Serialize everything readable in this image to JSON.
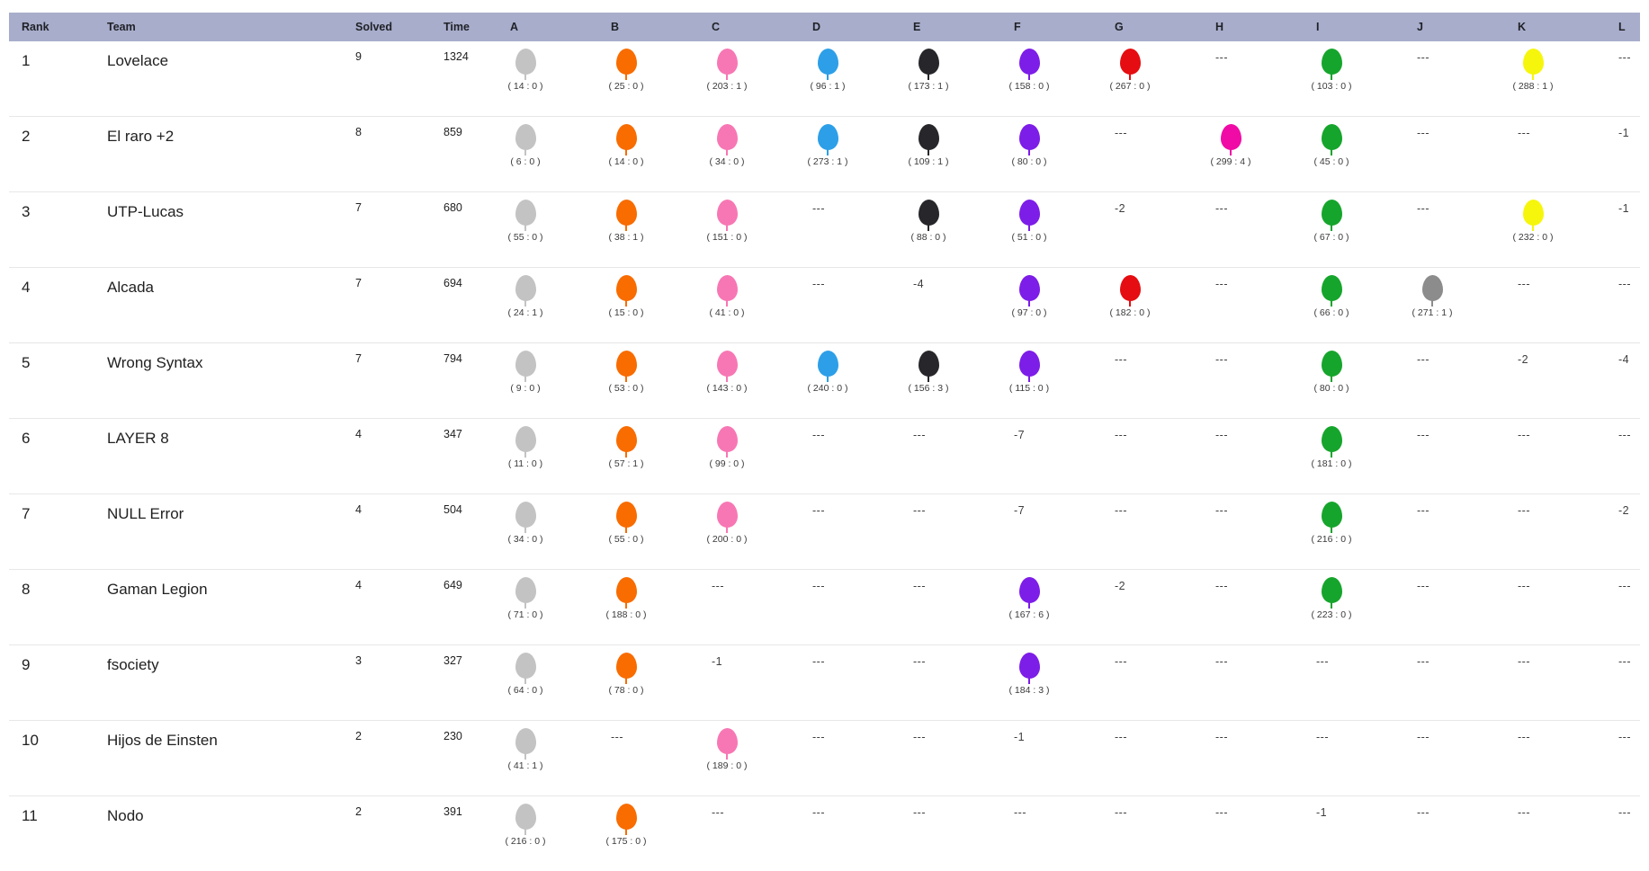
{
  "table": {
    "columns": [
      "Rank",
      "Team",
      "Solved",
      "Time",
      "A",
      "B",
      "C",
      "D",
      "E",
      "F",
      "G",
      "H",
      "I",
      "J",
      "K",
      "L"
    ],
    "problems": [
      "A",
      "B",
      "C",
      "D",
      "E",
      "F",
      "G",
      "H",
      "I",
      "J",
      "K",
      "L"
    ],
    "empty_marker": "---",
    "rows": [
      {
        "rank": "1",
        "team": "Lovelace",
        "solved": "9",
        "time": "1324",
        "cells": [
          {
            "balloon": true,
            "label": "( 14 : 0 )"
          },
          {
            "balloon": true,
            "label": "( 25 : 0 )"
          },
          {
            "balloon": true,
            "label": "( 203 : 1 )"
          },
          {
            "balloon": true,
            "label": "( 96 : 1 )"
          },
          {
            "balloon": true,
            "label": "( 173 : 1 )"
          },
          {
            "balloon": true,
            "label": "( 158 : 0 )"
          },
          {
            "balloon": true,
            "label": "( 267 : 0 )"
          },
          {
            "text": "---"
          },
          {
            "balloon": true,
            "label": "( 103 : 0 )"
          },
          {
            "text": "---"
          },
          {
            "balloon": true,
            "label": "( 288 : 1 )"
          },
          {
            "text": "---"
          }
        ]
      },
      {
        "rank": "2",
        "team": "El raro +2",
        "solved": "8",
        "time": "859",
        "cells": [
          {
            "balloon": true,
            "label": "( 6 : 0 )"
          },
          {
            "balloon": true,
            "label": "( 14 : 0 )"
          },
          {
            "balloon": true,
            "label": "( 34 : 0 )"
          },
          {
            "balloon": true,
            "label": "( 273 : 1 )"
          },
          {
            "balloon": true,
            "label": "( 109 : 1 )"
          },
          {
            "balloon": true,
            "label": "( 80 : 0 )"
          },
          {
            "text": "---"
          },
          {
            "balloon": true,
            "label": "( 299 : 4 )"
          },
          {
            "balloon": true,
            "label": "( 45 : 0 )"
          },
          {
            "text": "---"
          },
          {
            "text": "---"
          },
          {
            "text": "-1"
          }
        ]
      },
      {
        "rank": "3",
        "team": "UTP-Lucas",
        "solved": "7",
        "time": "680",
        "cells": [
          {
            "balloon": true,
            "label": "( 55 : 0 )"
          },
          {
            "balloon": true,
            "label": "( 38 : 1 )"
          },
          {
            "balloon": true,
            "label": "( 151 : 0 )"
          },
          {
            "text": "---"
          },
          {
            "balloon": true,
            "label": "( 88 : 0 )"
          },
          {
            "balloon": true,
            "label": "( 51 : 0 )"
          },
          {
            "text": "-2"
          },
          {
            "text": "---"
          },
          {
            "balloon": true,
            "label": "( 67 : 0 )"
          },
          {
            "text": "---"
          },
          {
            "balloon": true,
            "label": "( 232 : 0 )"
          },
          {
            "text": "-1"
          }
        ]
      },
      {
        "rank": "4",
        "team": "Alcada",
        "solved": "7",
        "time": "694",
        "cells": [
          {
            "balloon": true,
            "label": "( 24 : 1 )"
          },
          {
            "balloon": true,
            "label": "( 15 : 0 )"
          },
          {
            "balloon": true,
            "label": "( 41 : 0 )"
          },
          {
            "text": "---"
          },
          {
            "text": "-4"
          },
          {
            "balloon": true,
            "label": "( 97 : 0 )"
          },
          {
            "balloon": true,
            "label": "( 182 : 0 )"
          },
          {
            "text": "---"
          },
          {
            "balloon": true,
            "label": "( 66 : 0 )"
          },
          {
            "balloon": true,
            "label": "( 271 : 1 )"
          },
          {
            "text": "---"
          },
          {
            "text": "---"
          }
        ]
      },
      {
        "rank": "5",
        "team": "Wrong Syntax",
        "solved": "7",
        "time": "794",
        "cells": [
          {
            "balloon": true,
            "label": "( 9 : 0 )"
          },
          {
            "balloon": true,
            "label": "( 53 : 0 )"
          },
          {
            "balloon": true,
            "label": "( 143 : 0 )"
          },
          {
            "balloon": true,
            "label": "( 240 : 0 )"
          },
          {
            "balloon": true,
            "label": "( 156 : 3 )"
          },
          {
            "balloon": true,
            "label": "( 115 : 0 )"
          },
          {
            "text": "---"
          },
          {
            "text": "---"
          },
          {
            "balloon": true,
            "label": "( 80 : 0 )"
          },
          {
            "text": "---"
          },
          {
            "text": "-2"
          },
          {
            "text": "-4"
          }
        ]
      },
      {
        "rank": "6",
        "team": "LAYER 8",
        "solved": "4",
        "time": "347",
        "cells": [
          {
            "balloon": true,
            "label": "( 11 : 0 )"
          },
          {
            "balloon": true,
            "label": "( 57 : 1 )"
          },
          {
            "balloon": true,
            "label": "( 99 : 0 )"
          },
          {
            "text": "---"
          },
          {
            "text": "---"
          },
          {
            "text": "-7"
          },
          {
            "text": "---"
          },
          {
            "text": "---"
          },
          {
            "balloon": true,
            "label": "( 181 : 0 )"
          },
          {
            "text": "---"
          },
          {
            "text": "---"
          },
          {
            "text": "---"
          }
        ]
      },
      {
        "rank": "7",
        "team": "NULL Error",
        "solved": "4",
        "time": "504",
        "cells": [
          {
            "balloon": true,
            "label": "( 34 : 0 )"
          },
          {
            "balloon": true,
            "label": "( 55 : 0 )"
          },
          {
            "balloon": true,
            "label": "( 200 : 0 )"
          },
          {
            "text": "---"
          },
          {
            "text": "---"
          },
          {
            "text": "-7"
          },
          {
            "text": "---"
          },
          {
            "text": "---"
          },
          {
            "balloon": true,
            "label": "( 216 : 0 )"
          },
          {
            "text": "---"
          },
          {
            "text": "---"
          },
          {
            "text": "-2"
          }
        ]
      },
      {
        "rank": "8",
        "team": "Gaman Legion",
        "solved": "4",
        "time": "649",
        "cells": [
          {
            "balloon": true,
            "label": "( 71 : 0 )"
          },
          {
            "balloon": true,
            "label": "( 188 : 0 )"
          },
          {
            "text": "---"
          },
          {
            "text": "---"
          },
          {
            "text": "---"
          },
          {
            "balloon": true,
            "label": "( 167 : 6 )"
          },
          {
            "text": "-2"
          },
          {
            "text": "---"
          },
          {
            "balloon": true,
            "label": "( 223 : 0 )"
          },
          {
            "text": "---"
          },
          {
            "text": "---"
          },
          {
            "text": "---"
          }
        ]
      },
      {
        "rank": "9",
        "team": "fsociety",
        "solved": "3",
        "time": "327",
        "cells": [
          {
            "balloon": true,
            "label": "( 64 : 0 )"
          },
          {
            "balloon": true,
            "label": "( 78 : 0 )"
          },
          {
            "text": "-1"
          },
          {
            "text": "---"
          },
          {
            "text": "---"
          },
          {
            "balloon": true,
            "label": "( 184 : 3 )"
          },
          {
            "text": "---"
          },
          {
            "text": "---"
          },
          {
            "text": "---"
          },
          {
            "text": "---"
          },
          {
            "text": "---"
          },
          {
            "text": "---"
          }
        ]
      },
      {
        "rank": "10",
        "team": "Hijos de Einsten",
        "solved": "2",
        "time": "230",
        "cells": [
          {
            "balloon": true,
            "label": "( 41 : 1 )"
          },
          {
            "text": "---"
          },
          {
            "balloon": true,
            "label": "( 189 : 0 )"
          },
          {
            "text": "---"
          },
          {
            "text": "---"
          },
          {
            "text": "-1"
          },
          {
            "text": "---"
          },
          {
            "text": "---"
          },
          {
            "text": "---"
          },
          {
            "text": "---"
          },
          {
            "text": "---"
          },
          {
            "text": "---"
          }
        ]
      },
      {
        "rank": "11",
        "team": "Nodo",
        "solved": "2",
        "time": "391",
        "cells": [
          {
            "balloon": true,
            "label": "( 216 : 0 )"
          },
          {
            "balloon": true,
            "label": "( 175 : 0 )"
          },
          {
            "text": "---"
          },
          {
            "text": "---"
          },
          {
            "text": "---"
          },
          {
            "text": "---"
          },
          {
            "text": "---"
          },
          {
            "text": "---"
          },
          {
            "text": "-1"
          },
          {
            "text": "---"
          },
          {
            "text": "---"
          },
          {
            "text": "---"
          }
        ]
      }
    ]
  },
  "balloon_colors": {
    "A": "#c3c3c3",
    "B": "#f86c00",
    "C": "#f777b4",
    "D": "#2d9fe8",
    "E": "#27272b",
    "F": "#7d1de8",
    "G": "#e50d11",
    "H": "#f00ba6",
    "I": "#16a52c",
    "J": "#8c8c8c",
    "K": "#f6f60d"
  },
  "theme": {
    "header_bg": "#a8adcb",
    "row_divider": "#e7e7e7"
  }
}
